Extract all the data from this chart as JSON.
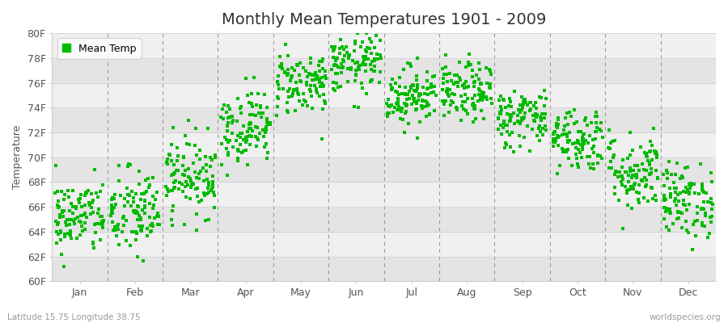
{
  "title": "Monthly Mean Temperatures 1901 - 2009",
  "ylabel": "Temperature",
  "xlabel_labels": [
    "Jan",
    "Feb",
    "Mar",
    "Apr",
    "May",
    "Jun",
    "Jul",
    "Aug",
    "Sep",
    "Oct",
    "Nov",
    "Dec"
  ],
  "ylim": [
    60,
    80
  ],
  "yticks": [
    60,
    62,
    64,
    66,
    68,
    70,
    72,
    74,
    76,
    78,
    80
  ],
  "ytick_labels": [
    "60F",
    "62F",
    "64F",
    "66F",
    "68F",
    "70F",
    "72F",
    "74F",
    "76F",
    "78F",
    "80F"
  ],
  "dot_color": "#00BB00",
  "dot_size": 6,
  "bg_color": "#ffffff",
  "plot_bg_color": "#ffffff",
  "stripe_light": "#f0f0f0",
  "stripe_dark": "#e4e4e4",
  "title_fontsize": 14,
  "axis_fontsize": 9,
  "tick_fontsize": 9,
  "legend_label": "Mean Temp",
  "footer_left": "Latitude 15.75 Longitude 38.75",
  "footer_right": "worldspecies.org",
  "num_years": 109,
  "monthly_means": [
    65.2,
    65.5,
    68.5,
    72.5,
    76.0,
    77.5,
    75.0,
    75.2,
    73.2,
    71.5,
    68.8,
    66.5
  ],
  "monthly_stds": [
    1.5,
    1.8,
    1.6,
    1.5,
    1.3,
    1.2,
    1.2,
    1.2,
    1.2,
    1.3,
    1.6,
    1.5
  ],
  "seed": 42
}
